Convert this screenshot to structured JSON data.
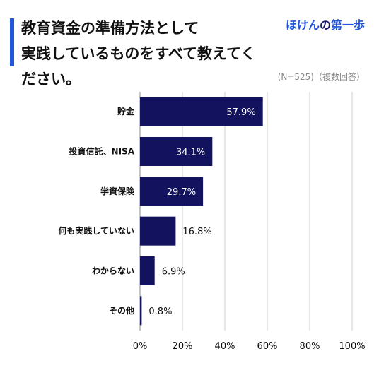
{
  "header": {
    "title": "教育資金の準備方法として\n実践しているものをすべて教えてください。",
    "brand_part1": "ほけん",
    "brand_part2": "の",
    "brand_part3": "第一歩",
    "sample_note": "(N=525)（複数回答）"
  },
  "colors": {
    "bar": "#12125e",
    "accent": "#2255dd",
    "grid": "#cccccc"
  },
  "chart_data": {
    "type": "bar",
    "orientation": "horizontal",
    "title": "教育資金の準備方法として実践しているものをすべて教えてください。",
    "categories": [
      "貯金",
      "投資信託、NISA",
      "学資保険",
      "何も実践していない",
      "わからない",
      "その他"
    ],
    "values": [
      57.9,
      34.1,
      29.7,
      16.8,
      6.9,
      0.8
    ],
    "value_labels": [
      "57.9%",
      "34.1%",
      "29.7%",
      "16.8%",
      "6.9%",
      "0.8%"
    ],
    "xlim": [
      0,
      100
    ],
    "xticks": [
      0,
      20,
      40,
      60,
      80,
      100
    ],
    "xtick_labels": [
      "0%",
      "20%",
      "40%",
      "60%",
      "80%",
      "100%"
    ],
    "grid": "vertical"
  }
}
